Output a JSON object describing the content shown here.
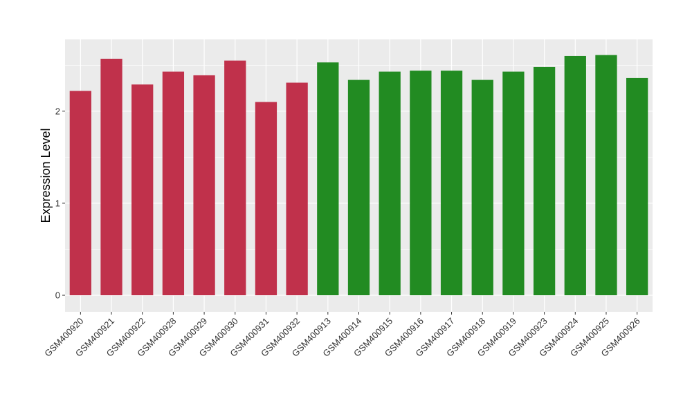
{
  "chart_data": {
    "type": "bar",
    "title": "",
    "xlabel": "",
    "ylabel": "Expression Level",
    "ylim": [
      -0.18,
      2.78
    ],
    "yticks": [
      0,
      1,
      2
    ],
    "grid": true,
    "colors": {
      "panel": "#ebebeb",
      "grid": "#ffffff",
      "group1": "#c0314b",
      "group2": "#228b22"
    },
    "categories": [
      "GSM400920",
      "GSM400921",
      "GSM400922",
      "GSM400928",
      "GSM400929",
      "GSM400930",
      "GSM400931",
      "GSM400932",
      "GSM400913",
      "GSM400914",
      "GSM400915",
      "GSM400916",
      "GSM400917",
      "GSM400918",
      "GSM400919",
      "GSM400923",
      "GSM400924",
      "GSM400925",
      "GSM400926"
    ],
    "values": [
      2.22,
      2.57,
      2.29,
      2.43,
      2.39,
      2.55,
      2.1,
      2.31,
      2.53,
      2.34,
      2.43,
      2.44,
      2.44,
      2.34,
      2.43,
      2.48,
      2.6,
      2.61,
      2.36
    ],
    "bar_groups": [
      1,
      1,
      1,
      1,
      1,
      1,
      1,
      1,
      2,
      2,
      2,
      2,
      2,
      2,
      2,
      2,
      2,
      2,
      2
    ]
  }
}
